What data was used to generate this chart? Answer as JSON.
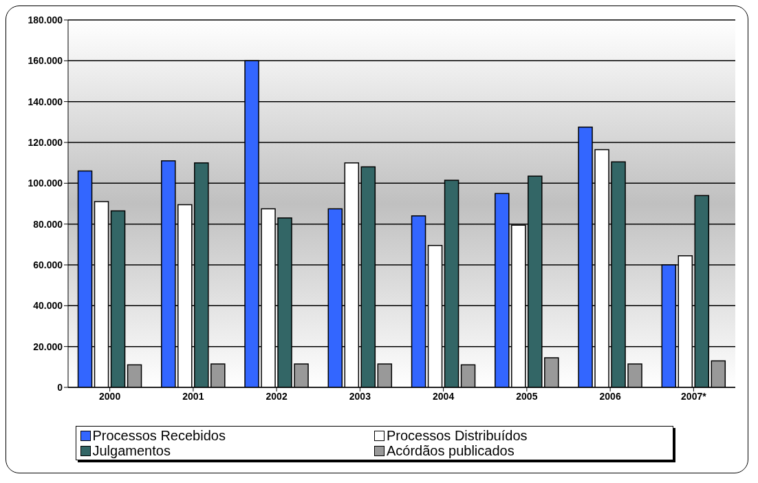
{
  "chart_data": {
    "type": "bar",
    "categories": [
      "2000",
      "2001",
      "2002",
      "2003",
      "2004",
      "2005",
      "2006",
      "2007*"
    ],
    "series": [
      {
        "name": "Processos Recebidos",
        "color": "#3366ff",
        "values": [
          106000,
          111000,
          160000,
          87500,
          84000,
          95000,
          127500,
          60000
        ]
      },
      {
        "name": "Processos Distribuídos",
        "color": "#ffffff",
        "values": [
          91000,
          89500,
          87500,
          110000,
          69500,
          79500,
          116500,
          64500
        ]
      },
      {
        "name": "Julgamentos",
        "color": "#336666",
        "values": [
          86500,
          110000,
          83000,
          108000,
          101500,
          103500,
          110500,
          94000
        ]
      },
      {
        "name": "Acórdãos publicados",
        "color": "#999999",
        "values": [
          11000,
          11500,
          11500,
          11500,
          11000,
          14500,
          11500,
          13000
        ]
      }
    ],
    "ylim": [
      0,
      180000
    ],
    "yticks": [
      {
        "value": 0,
        "label": "0"
      },
      {
        "value": 20000,
        "label": "20.000"
      },
      {
        "value": 40000,
        "label": "40.000"
      },
      {
        "value": 60000,
        "label": "60.000"
      },
      {
        "value": 80000,
        "label": "80.000"
      },
      {
        "value": 100000,
        "label": "100.000"
      },
      {
        "value": 120000,
        "label": "120.000"
      },
      {
        "value": 140000,
        "label": "140.000"
      },
      {
        "value": 160000,
        "label": "160.000"
      },
      {
        "value": 180000,
        "label": "180.000"
      }
    ],
    "grid": "y",
    "legend": "bottom"
  }
}
